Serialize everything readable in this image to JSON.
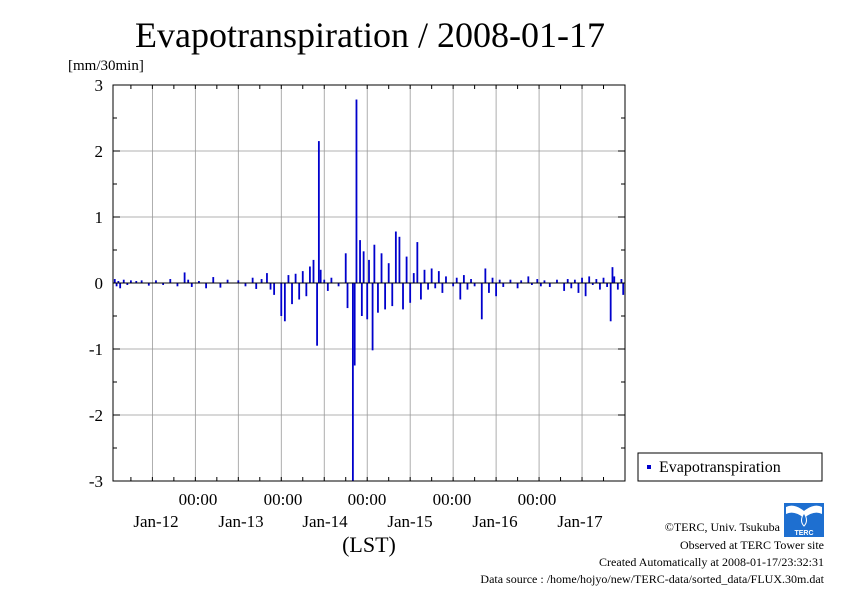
{
  "chart_data": {
    "type": "bar",
    "title": "Evapotranspiration / 2008-01-17",
    "ylabel": "[mm/30min]",
    "xlabel": "(LST)",
    "ylim": [
      -3,
      3
    ],
    "yticks": [
      "3",
      "2",
      "1",
      "0",
      "-1",
      "-2",
      "-3"
    ],
    "xtick_time_labels": [
      "00:00",
      "00:00",
      "00:00",
      "00:00",
      "00:00"
    ],
    "xtick_date_labels": [
      "Jan-12",
      "Jan-13",
      "Jan-14",
      "Jan-15",
      "Jan-16",
      "Jan-17"
    ],
    "grid": true,
    "legend_position": "right",
    "x_start": "2008-01-11T01:00",
    "x_end": "2008-01-17T00:00",
    "interval_minutes": 30,
    "series": [
      {
        "name": "Evapotranspiration",
        "color": "#0000cc",
        "spikes": [
          {
            "t": "2008-01-11T01:30",
            "v": 0.06
          },
          {
            "t": "2008-01-11T02:00",
            "v": -0.05
          },
          {
            "t": "2008-01-11T02:30",
            "v": 0.03
          },
          {
            "t": "2008-01-11T03:00",
            "v": -0.08
          },
          {
            "t": "2008-01-11T04:00",
            "v": 0.05
          },
          {
            "t": "2008-01-11T05:00",
            "v": -0.03
          },
          {
            "t": "2008-01-11T06:00",
            "v": 0.04
          },
          {
            "t": "2008-01-11T07:30",
            "v": 0.03
          },
          {
            "t": "2008-01-11T09:00",
            "v": 0.04
          },
          {
            "t": "2008-01-11T11:00",
            "v": -0.04
          },
          {
            "t": "2008-01-11T13:00",
            "v": 0.04
          },
          {
            "t": "2008-01-11T15:00",
            "v": -0.03
          },
          {
            "t": "2008-01-11T17:00",
            "v": 0.06
          },
          {
            "t": "2008-01-11T19:00",
            "v": -0.05
          },
          {
            "t": "2008-01-11T21:00",
            "v": 0.16
          },
          {
            "t": "2008-01-11T22:00",
            "v": 0.05
          },
          {
            "t": "2008-01-11T23:00",
            "v": -0.06
          },
          {
            "t": "2008-01-12T01:00",
            "v": 0.03
          },
          {
            "t": "2008-01-12T03:00",
            "v": -0.08
          },
          {
            "t": "2008-01-12T05:00",
            "v": 0.09
          },
          {
            "t": "2008-01-12T07:00",
            "v": -0.07
          },
          {
            "t": "2008-01-12T09:00",
            "v": 0.05
          },
          {
            "t": "2008-01-12T12:00",
            "v": 0.04
          },
          {
            "t": "2008-01-12T14:00",
            "v": -0.05
          },
          {
            "t": "2008-01-12T16:00",
            "v": 0.08
          },
          {
            "t": "2008-01-12T17:00",
            "v": -0.09
          },
          {
            "t": "2008-01-12T18:30",
            "v": 0.06
          },
          {
            "t": "2008-01-12T20:00",
            "v": 0.15
          },
          {
            "t": "2008-01-12T21:00",
            "v": -0.1
          },
          {
            "t": "2008-01-12T22:00",
            "v": -0.18
          },
          {
            "t": "2008-01-13T00:00",
            "v": -0.5
          },
          {
            "t": "2008-01-13T01:00",
            "v": -0.58
          },
          {
            "t": "2008-01-13T02:00",
            "v": 0.12
          },
          {
            "t": "2008-01-13T03:00",
            "v": -0.32
          },
          {
            "t": "2008-01-13T04:00",
            "v": 0.14
          },
          {
            "t": "2008-01-13T05:00",
            "v": -0.25
          },
          {
            "t": "2008-01-13T06:00",
            "v": 0.18
          },
          {
            "t": "2008-01-13T07:00",
            "v": -0.2
          },
          {
            "t": "2008-01-13T08:00",
            "v": 0.25
          },
          {
            "t": "2008-01-13T09:00",
            "v": 0.35
          },
          {
            "t": "2008-01-13T10:00",
            "v": -0.95
          },
          {
            "t": "2008-01-13T10:30",
            "v": 2.15
          },
          {
            "t": "2008-01-13T11:00",
            "v": 0.2
          },
          {
            "t": "2008-01-13T12:00",
            "v": 0.05
          },
          {
            "t": "2008-01-13T13:00",
            "v": -0.12
          },
          {
            "t": "2008-01-13T14:00",
            "v": 0.08
          },
          {
            "t": "2008-01-13T16:00",
            "v": -0.05
          },
          {
            "t": "2008-01-13T18:00",
            "v": 0.45
          },
          {
            "t": "2008-01-13T18:30",
            "v": -0.38
          },
          {
            "t": "2008-01-13T20:00",
            "v": -3.0
          },
          {
            "t": "2008-01-13T20:30",
            "v": -1.25
          },
          {
            "t": "2008-01-13T21:00",
            "v": 2.78
          },
          {
            "t": "2008-01-13T22:00",
            "v": 0.65
          },
          {
            "t": "2008-01-13T22:30",
            "v": -0.5
          },
          {
            "t": "2008-01-13T23:00",
            "v": 0.48
          },
          {
            "t": "2008-01-14T00:00",
            "v": -0.55
          },
          {
            "t": "2008-01-14T00:30",
            "v": 0.35
          },
          {
            "t": "2008-01-14T01:30",
            "v": -1.02
          },
          {
            "t": "2008-01-14T02:00",
            "v": 0.58
          },
          {
            "t": "2008-01-14T03:00",
            "v": -0.45
          },
          {
            "t": "2008-01-14T04:00",
            "v": 0.45
          },
          {
            "t": "2008-01-14T05:00",
            "v": -0.4
          },
          {
            "t": "2008-01-14T06:00",
            "v": 0.3
          },
          {
            "t": "2008-01-14T07:00",
            "v": -0.35
          },
          {
            "t": "2008-01-14T08:00",
            "v": 0.78
          },
          {
            "t": "2008-01-14T09:00",
            "v": 0.7
          },
          {
            "t": "2008-01-14T10:00",
            "v": -0.4
          },
          {
            "t": "2008-01-14T11:00",
            "v": 0.4
          },
          {
            "t": "2008-01-14T12:00",
            "v": -0.3
          },
          {
            "t": "2008-01-14T13:00",
            "v": 0.15
          },
          {
            "t": "2008-01-14T14:00",
            "v": 0.62
          },
          {
            "t": "2008-01-14T15:00",
            "v": -0.25
          },
          {
            "t": "2008-01-14T16:00",
            "v": 0.2
          },
          {
            "t": "2008-01-14T17:00",
            "v": -0.1
          },
          {
            "t": "2008-01-14T18:00",
            "v": 0.22
          },
          {
            "t": "2008-01-14T19:00",
            "v": -0.08
          },
          {
            "t": "2008-01-14T20:00",
            "v": 0.18
          },
          {
            "t": "2008-01-14T21:00",
            "v": -0.15
          },
          {
            "t": "2008-01-14T22:00",
            "v": 0.1
          },
          {
            "t": "2008-01-15T00:00",
            "v": -0.05
          },
          {
            "t": "2008-01-15T01:00",
            "v": 0.08
          },
          {
            "t": "2008-01-15T02:00",
            "v": -0.25
          },
          {
            "t": "2008-01-15T03:00",
            "v": 0.12
          },
          {
            "t": "2008-01-15T04:00",
            "v": -0.1
          },
          {
            "t": "2008-01-15T05:00",
            "v": 0.06
          },
          {
            "t": "2008-01-15T06:00",
            "v": -0.05
          },
          {
            "t": "2008-01-15T08:00",
            "v": -0.55
          },
          {
            "t": "2008-01-15T09:00",
            "v": 0.22
          },
          {
            "t": "2008-01-15T10:00",
            "v": -0.15
          },
          {
            "t": "2008-01-15T11:00",
            "v": 0.08
          },
          {
            "t": "2008-01-15T12:00",
            "v": -0.2
          },
          {
            "t": "2008-01-15T13:00",
            "v": 0.05
          },
          {
            "t": "2008-01-15T14:00",
            "v": -0.06
          },
          {
            "t": "2008-01-15T16:00",
            "v": 0.05
          },
          {
            "t": "2008-01-15T18:00",
            "v": -0.08
          },
          {
            "t": "2008-01-15T19:00",
            "v": 0.04
          },
          {
            "t": "2008-01-15T21:00",
            "v": 0.1
          },
          {
            "t": "2008-01-15T22:00",
            "v": -0.03
          },
          {
            "t": "2008-01-15T23:30",
            "v": 0.06
          },
          {
            "t": "2008-01-16T00:30",
            "v": -0.05
          },
          {
            "t": "2008-01-16T01:30",
            "v": 0.04
          },
          {
            "t": "2008-01-16T03:00",
            "v": -0.06
          },
          {
            "t": "2008-01-16T05:00",
            "v": 0.05
          },
          {
            "t": "2008-01-16T07:00",
            "v": -0.12
          },
          {
            "t": "2008-01-16T08:00",
            "v": 0.06
          },
          {
            "t": "2008-01-16T09:00",
            "v": -0.08
          },
          {
            "t": "2008-01-16T10:00",
            "v": 0.05
          },
          {
            "t": "2008-01-16T11:00",
            "v": -0.15
          },
          {
            "t": "2008-01-16T12:00",
            "v": 0.08
          },
          {
            "t": "2008-01-16T13:00",
            "v": -0.2
          },
          {
            "t": "2008-01-16T14:00",
            "v": 0.1
          },
          {
            "t": "2008-01-16T15:00",
            "v": -0.03
          },
          {
            "t": "2008-01-16T16:00",
            "v": 0.06
          },
          {
            "t": "2008-01-16T17:00",
            "v": -0.1
          },
          {
            "t": "2008-01-16T18:00",
            "v": 0.08
          },
          {
            "t": "2008-01-16T19:00",
            "v": -0.06
          },
          {
            "t": "2008-01-16T20:00",
            "v": -0.58
          },
          {
            "t": "2008-01-16T20:30",
            "v": 0.24
          },
          {
            "t": "2008-01-16T21:00",
            "v": 0.1
          },
          {
            "t": "2008-01-16T22:00",
            "v": -0.1
          },
          {
            "t": "2008-01-16T23:00",
            "v": 0.06
          },
          {
            "t": "2008-01-16T23:30",
            "v": -0.18
          }
        ]
      }
    ]
  },
  "legend": {
    "items": [
      {
        "label": "Evapotranspiration",
        "color": "#0000cc"
      }
    ]
  },
  "credits": {
    "org": "©TERC, Univ. Tsukuba",
    "site": "Observed at TERC Tower site",
    "created": "Created Automatically at 2008-01-17/23:32:31",
    "source": "Data source : /home/hojyo/new/TERC-data/sorted_data/FLUX.30m.dat",
    "logo_text": "TERC"
  }
}
